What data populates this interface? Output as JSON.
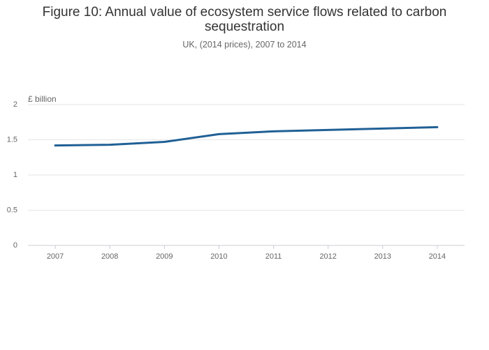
{
  "chart_data": {
    "type": "line",
    "title": "Figure 10: Annual value of ecosystem service flows related to carbon sequestration",
    "subtitle": "UK, (2014 prices), 2007 to 2014",
    "y_label": "£ billion",
    "categories": [
      "2007",
      "2008",
      "2009",
      "2010",
      "2011",
      "2012",
      "2013",
      "2014"
    ],
    "values": [
      1.42,
      1.43,
      1.47,
      1.58,
      1.62,
      1.64,
      1.66,
      1.68
    ],
    "color": "#206095",
    "ylim": [
      0,
      2
    ],
    "yticks": [
      0,
      0.5,
      1,
      1.5,
      2
    ],
    "grid": true
  }
}
